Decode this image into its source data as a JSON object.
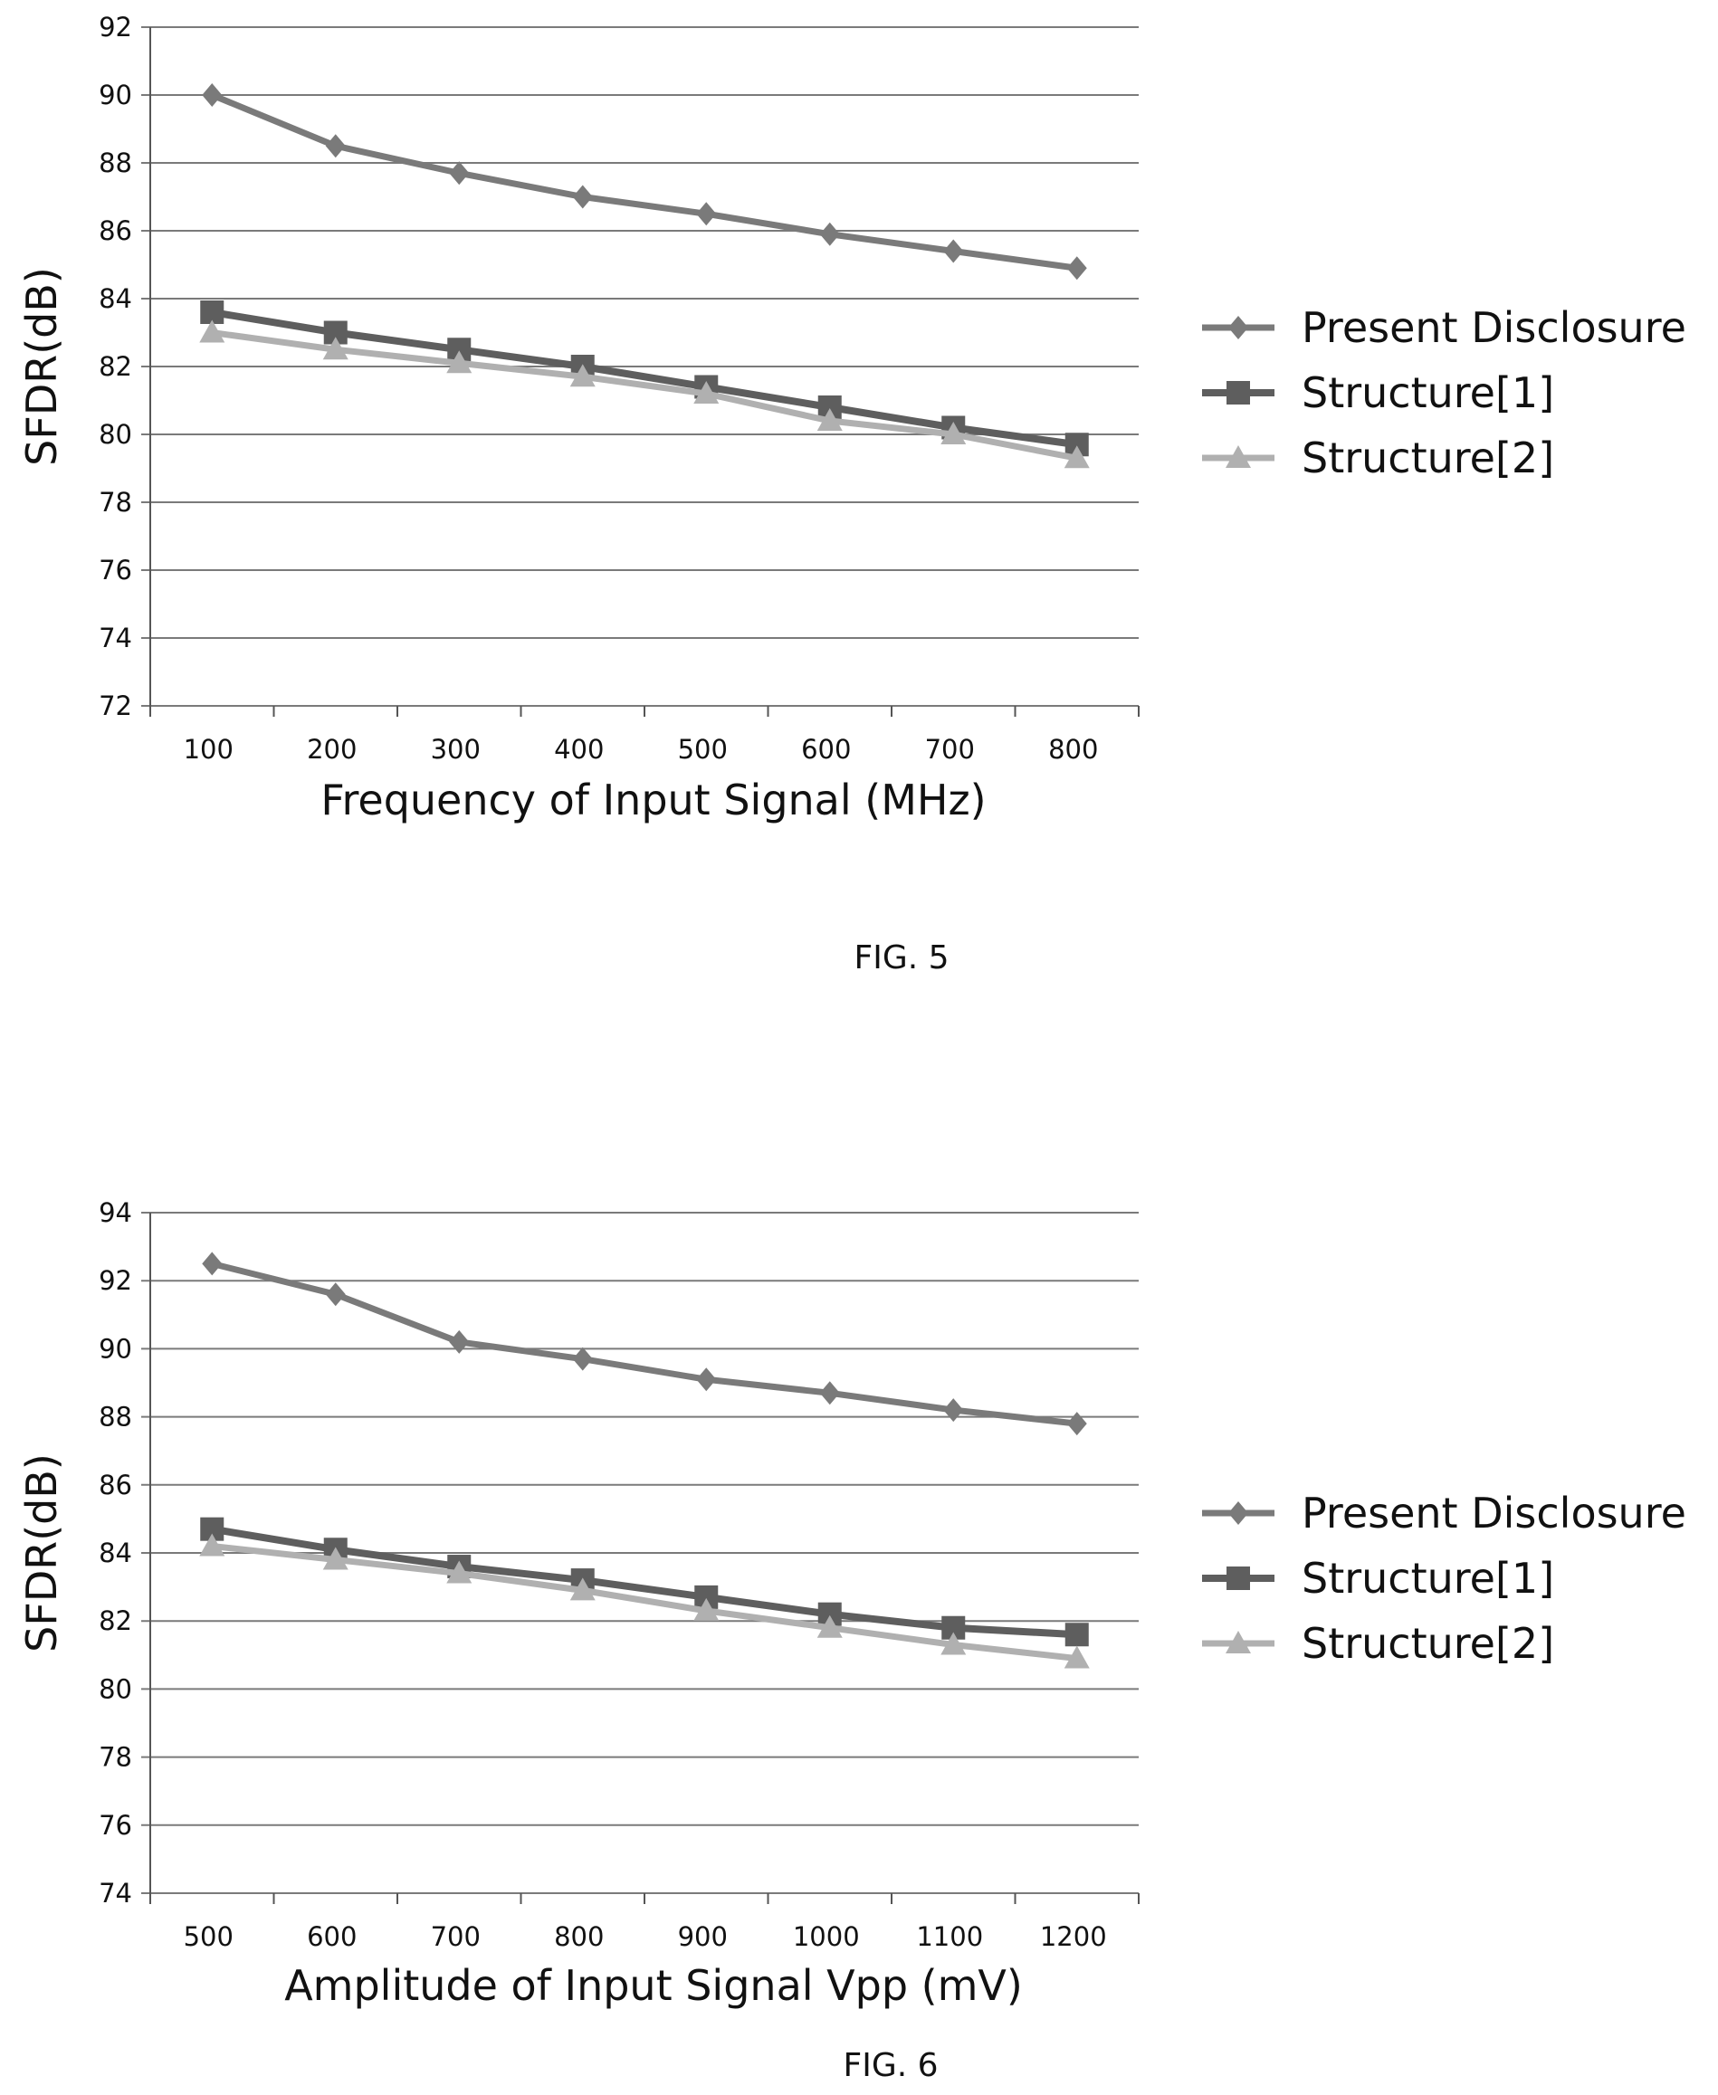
{
  "figures": [
    {
      "caption": "FIG. 5"
    },
    {
      "caption": "FIG. 6"
    }
  ],
  "colors": {
    "present": "#7a7a7a",
    "structure1": "#5e5e5e",
    "structure2": "#b0b0b0",
    "grid": "#7a7a7a"
  },
  "chart_data": [
    {
      "type": "line",
      "title": "",
      "xlabel": "Frequency of Input Signal  (MHz)",
      "ylabel": "SFDR(dB)",
      "categories": [
        "100",
        "200",
        "300",
        "400",
        "500",
        "600",
        "700",
        "800"
      ],
      "ylim": [
        72,
        92
      ],
      "yticks": [
        72,
        74,
        76,
        78,
        80,
        82,
        84,
        86,
        88,
        90,
        92
      ],
      "grid": true,
      "legend": "right",
      "series": [
        {
          "name": "Present Disclosure",
          "marker": "diamond",
          "values": [
            90.0,
            88.5,
            87.7,
            87.0,
            86.5,
            85.9,
            85.4,
            84.9
          ]
        },
        {
          "name": "Structure[1]",
          "marker": "square",
          "values": [
            83.6,
            83.0,
            82.5,
            82.0,
            81.4,
            80.8,
            80.2,
            79.7
          ]
        },
        {
          "name": "Structure[2]",
          "marker": "triangle",
          "values": [
            83.0,
            82.5,
            82.1,
            81.7,
            81.2,
            80.4,
            80.0,
            79.3
          ]
        }
      ]
    },
    {
      "type": "line",
      "title": "",
      "xlabel": "Amplitude of Input Signal Vpp  (mV)",
      "ylabel": "SFDR(dB)",
      "categories": [
        "500",
        "600",
        "700",
        "800",
        "900",
        "1000",
        "1100",
        "1200"
      ],
      "ylim": [
        74,
        94
      ],
      "yticks": [
        74,
        76,
        78,
        80,
        82,
        84,
        86,
        88,
        90,
        92,
        94
      ],
      "grid": true,
      "legend": "right",
      "series": [
        {
          "name": "Present Disclosure",
          "marker": "diamond",
          "values": [
            92.5,
            91.6,
            90.2,
            89.7,
            89.1,
            88.7,
            88.2,
            87.8
          ]
        },
        {
          "name": "Structure[1]",
          "marker": "square",
          "values": [
            84.7,
            84.1,
            83.6,
            83.2,
            82.7,
            82.2,
            81.8,
            81.6
          ]
        },
        {
          "name": "Structure[2]",
          "marker": "triangle",
          "values": [
            84.2,
            83.8,
            83.4,
            82.9,
            82.3,
            81.8,
            81.3,
            80.9
          ]
        }
      ]
    }
  ]
}
